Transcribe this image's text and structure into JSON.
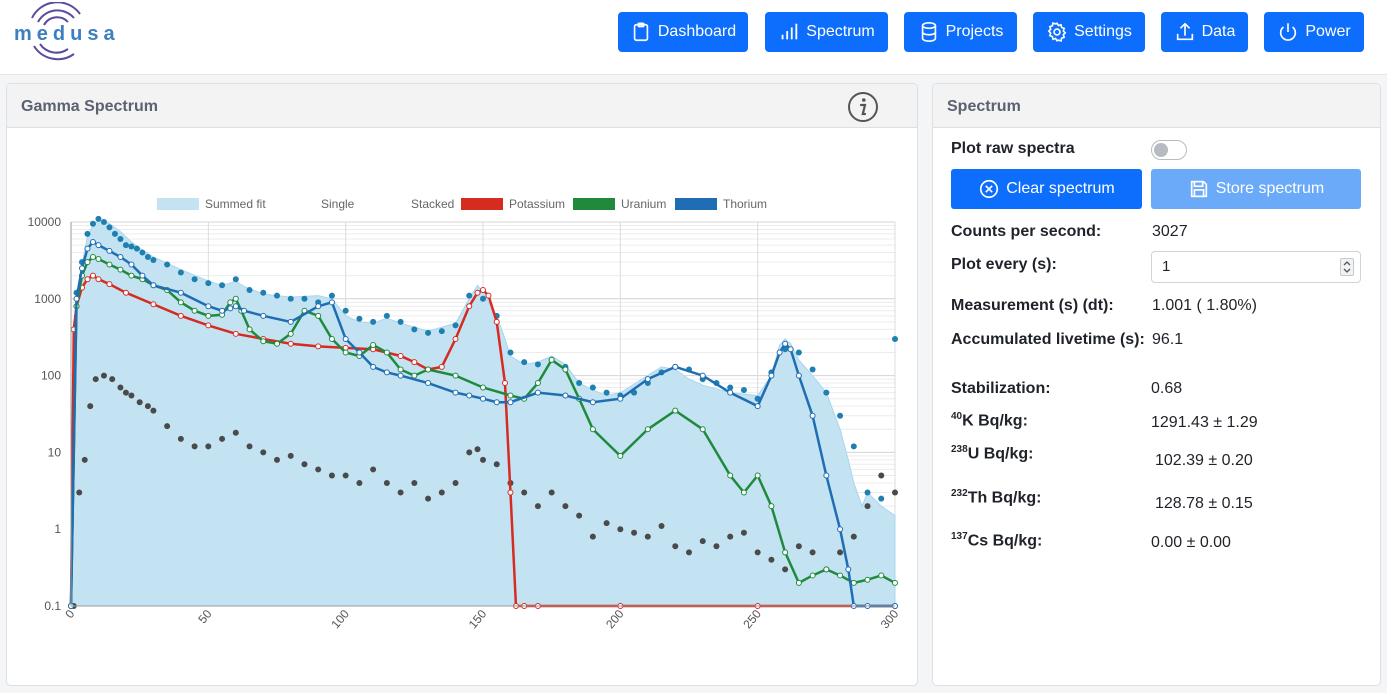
{
  "logo": {
    "text": "medusa"
  },
  "nav": [
    {
      "label": "Dashboard",
      "icon": "clipboard-icon"
    },
    {
      "label": "Spectrum",
      "icon": "bar-chart-icon"
    },
    {
      "label": "Projects",
      "icon": "database-icon"
    },
    {
      "label": "Settings",
      "icon": "gear-icon"
    },
    {
      "label": "Data",
      "icon": "upload-icon"
    },
    {
      "label": "Power",
      "icon": "power-icon"
    }
  ],
  "gamma_panel": {
    "title": "Gamma Spectrum"
  },
  "spectrum_panel": {
    "title": "Spectrum",
    "plot_raw_label": "Plot raw spectra",
    "plot_raw_enabled": false,
    "clear_label": "Clear spectrum",
    "store_label": "Store spectrum",
    "cps_label": "Counts per second:",
    "cps_value": "3027",
    "plot_every_label": "Plot every (s):",
    "plot_every_value": "1",
    "measurement_label": "Measurement (s) (dt):",
    "measurement_value": "1.001 ( 1.80%)",
    "livetime_label": "Accumulated livetime (s):",
    "livetime_value": "96.1",
    "stabilization_label": "Stabilization:",
    "stabilization_value": "0.68",
    "nuclides": [
      {
        "sup": "40",
        "label": "K Bq/kg:",
        "value": "1291.43 ± 1.29"
      },
      {
        "sup": "238",
        "label": "U Bq/kg:",
        "value": "102.39 ± 0.20"
      },
      {
        "sup": "232",
        "label": "Th Bq/kg:",
        "value": "128.78 ± 0.15"
      },
      {
        "sup": "137",
        "label": "Cs Bq/kg:",
        "value": "0.00 ± 0.00"
      }
    ]
  },
  "chart_data": {
    "type": "line",
    "title": "",
    "xlabel": "",
    "ylabel": "",
    "xlim": [
      0,
      300
    ],
    "ylim": [
      0.1,
      10000
    ],
    "yscale": "log",
    "x_ticks": [
      "0",
      "50",
      "100",
      "150",
      "200",
      "250",
      "300"
    ],
    "y_ticks": [
      "0.1",
      "1",
      "10",
      "100",
      "1000",
      "10000"
    ],
    "grid": true,
    "legend_position": "top",
    "legend": [
      {
        "label": "Summed fit",
        "color": "#c3e3f3"
      },
      {
        "label": "Single",
        "color": ""
      },
      {
        "label": "Stacked",
        "color": ""
      },
      {
        "label": "Potassium",
        "color": "#d62b20"
      },
      {
        "label": "Uranium",
        "color": "#208a3c"
      },
      {
        "label": "Thorium",
        "color": "#1f6db2"
      }
    ],
    "series": [
      {
        "name": "Summed fit",
        "color": "#c3e3f3",
        "x": [
          0,
          2,
          4,
          6,
          8,
          10,
          14,
          18,
          22,
          26,
          30,
          40,
          50,
          55,
          58,
          60,
          63,
          70,
          80,
          90,
          95,
          100,
          105,
          110,
          115,
          120,
          130,
          140,
          145,
          148,
          150,
          155,
          158,
          160,
          165,
          170,
          175,
          180,
          185,
          190,
          195,
          200,
          210,
          215,
          220,
          225,
          230,
          240,
          250,
          255,
          258,
          260,
          262,
          265,
          270,
          275,
          280,
          283,
          285,
          288,
          290,
          295,
          300
        ],
        "y": [
          0.1,
          900,
          2800,
          6500,
          9000,
          10500,
          9500,
          7500,
          5500,
          4300,
          3500,
          2400,
          1700,
          1500,
          1600,
          1700,
          1450,
          1150,
          1050,
          1100,
          1000,
          600,
          500,
          480,
          560,
          480,
          380,
          480,
          1000,
          1500,
          1200,
          600,
          300,
          180,
          140,
          150,
          180,
          140,
          80,
          65,
          55,
          60,
          100,
          130,
          120,
          90,
          75,
          60,
          55,
          100,
          250,
          300,
          260,
          160,
          100,
          60,
          20,
          8,
          4,
          2,
          3,
          2,
          1.5
        ]
      },
      {
        "name": "Potassium",
        "color": "#d62b20",
        "x": [
          0,
          1,
          2,
          4,
          6,
          8,
          10,
          14,
          20,
          30,
          40,
          50,
          60,
          70,
          80,
          90,
          100,
          110,
          120,
          125,
          130,
          135,
          140,
          145,
          148,
          150,
          152,
          155,
          158,
          160,
          162,
          165,
          170,
          200,
          250,
          300
        ],
        "y": [
          0.1,
          400,
          800,
          1400,
          1800,
          2000,
          1800,
          1550,
          1200,
          850,
          600,
          450,
          350,
          300,
          260,
          240,
          230,
          220,
          180,
          150,
          120,
          130,
          300,
          800,
          1200,
          1300,
          1100,
          500,
          80,
          3,
          0.1,
          0.1,
          0.1,
          0.1,
          0.1,
          0.1
        ]
      },
      {
        "name": "Uranium",
        "color": "#208a3c",
        "x": [
          0,
          2,
          4,
          6,
          8,
          10,
          14,
          18,
          22,
          26,
          30,
          35,
          40,
          45,
          50,
          55,
          58,
          60,
          62,
          65,
          70,
          75,
          80,
          85,
          90,
          95,
          100,
          105,
          110,
          115,
          120,
          125,
          130,
          140,
          150,
          160,
          165,
          170,
          175,
          180,
          185,
          190,
          200,
          210,
          220,
          230,
          240,
          245,
          250,
          255,
          260,
          265,
          270,
          275,
          280,
          285,
          290,
          295,
          300
        ],
        "y": [
          0.1,
          800,
          2000,
          3000,
          3500,
          3300,
          2800,
          2400,
          2000,
          1800,
          1500,
          1300,
          900,
          700,
          600,
          620,
          900,
          1000,
          700,
          400,
          280,
          260,
          350,
          700,
          600,
          300,
          200,
          180,
          250,
          200,
          120,
          100,
          120,
          100,
          70,
          55,
          50,
          80,
          160,
          120,
          50,
          20,
          9,
          20,
          35,
          20,
          5,
          3,
          5,
          2,
          0.5,
          0.2,
          0.25,
          0.3,
          0.25,
          0.2,
          0.22,
          0.25,
          0.2
        ]
      },
      {
        "name": "Thorium",
        "color": "#1f6db2",
        "x": [
          0,
          2,
          4,
          6,
          8,
          10,
          14,
          18,
          22,
          26,
          30,
          40,
          50,
          55,
          58,
          60,
          63,
          70,
          80,
          90,
          95,
          100,
          105,
          110,
          115,
          120,
          130,
          140,
          145,
          150,
          155,
          160,
          170,
          180,
          190,
          200,
          210,
          220,
          230,
          240,
          250,
          255,
          258,
          260,
          262,
          265,
          270,
          275,
          280,
          283,
          285,
          290,
          300
        ],
        "y": [
          0.1,
          1000,
          2500,
          4500,
          5500,
          5000,
          4200,
          3500,
          2800,
          2000,
          1500,
          1200,
          800,
          700,
          750,
          800,
          700,
          600,
          500,
          800,
          900,
          300,
          200,
          130,
          110,
          100,
          80,
          60,
          55,
          50,
          45,
          45,
          60,
          55,
          45,
          50,
          90,
          130,
          100,
          60,
          40,
          100,
          200,
          260,
          220,
          100,
          30,
          5,
          1,
          0.3,
          0.1,
          0.1,
          0.1
        ]
      },
      {
        "name": "Measured (summed)",
        "color": "#1e7fb0",
        "type": "scatter",
        "x": [
          0,
          2,
          4,
          6,
          8,
          10,
          12,
          14,
          16,
          18,
          20,
          22,
          24,
          26,
          28,
          30,
          35,
          40,
          45,
          50,
          55,
          60,
          65,
          70,
          75,
          80,
          85,
          90,
          95,
          100,
          105,
          110,
          115,
          120,
          125,
          130,
          135,
          140,
          145,
          150,
          155,
          160,
          165,
          170,
          175,
          180,
          185,
          190,
          195,
          200,
          205,
          210,
          215,
          220,
          225,
          230,
          235,
          240,
          245,
          250,
          255,
          260,
          265,
          270,
          275,
          280,
          285,
          290,
          295,
          300
        ],
        "y": [
          0.1,
          1200,
          3000,
          7000,
          9500,
          11000,
          10000,
          8500,
          7000,
          6000,
          5000,
          4800,
          4500,
          4000,
          3500,
          3200,
          2800,
          2200,
          1800,
          1600,
          1500,
          1800,
          1300,
          1200,
          1100,
          1000,
          1000,
          900,
          1100,
          700,
          550,
          500,
          600,
          500,
          400,
          360,
          380,
          450,
          1100,
          1000,
          600,
          200,
          150,
          140,
          160,
          130,
          80,
          70,
          60,
          55,
          60,
          80,
          110,
          130,
          120,
          90,
          80,
          70,
          65,
          50,
          110,
          220,
          200,
          120,
          60,
          30,
          12,
          3,
          2.5,
          300
        ]
      },
      {
        "name": "Measured (single)",
        "color": "#4a4a4a",
        "type": "scatter",
        "x": [
          1,
          3,
          5,
          7,
          9,
          12,
          15,
          18,
          20,
          22,
          25,
          28,
          30,
          35,
          40,
          45,
          50,
          55,
          60,
          65,
          70,
          75,
          80,
          85,
          90,
          95,
          100,
          105,
          110,
          115,
          120,
          125,
          130,
          135,
          140,
          145,
          148,
          150,
          155,
          160,
          165,
          170,
          175,
          180,
          185,
          190,
          195,
          200,
          205,
          210,
          215,
          220,
          225,
          230,
          235,
          240,
          245,
          250,
          255,
          260,
          265,
          270,
          275,
          280,
          285,
          290,
          295,
          300
        ],
        "y": [
          0.1,
          3,
          8,
          40,
          90,
          100,
          90,
          70,
          60,
          55,
          45,
          40,
          35,
          22,
          15,
          12,
          12,
          15,
          18,
          12,
          10,
          8,
          9,
          7,
          6,
          5,
          5,
          4,
          6,
          4,
          3,
          4,
          2.5,
          3,
          4,
          10,
          11,
          8,
          7,
          4,
          3,
          2,
          3,
          2,
          1.5,
          0.8,
          1.2,
          1,
          0.9,
          0.8,
          1.1,
          0.6,
          0.5,
          0.7,
          0.6,
          0.8,
          0.9,
          0.5,
          0.4,
          0.3,
          0.6,
          0.5,
          0.3,
          0.5,
          0.8,
          2,
          5,
          3
        ]
      }
    ]
  }
}
